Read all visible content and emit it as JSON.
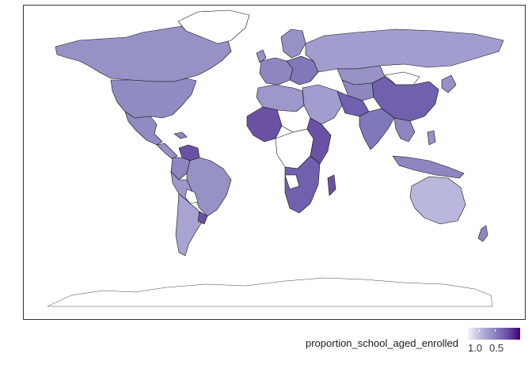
{
  "legend": {
    "title": "proportion_school_aged_enrolled",
    "ticks": [
      {
        "label": "1.0"
      },
      {
        "label": "0.5"
      }
    ]
  },
  "colors": {
    "low": "#f4f3f9",
    "mid": "#8d86c0",
    "high": "#3f007d",
    "missing": "#ffffff",
    "border": "#111111"
  }
}
